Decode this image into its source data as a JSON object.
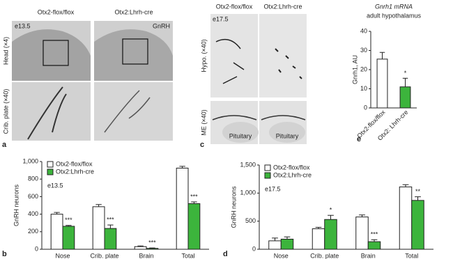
{
  "panels": {
    "a": {
      "label": "a",
      "columns": [
        "Otx2-flox/flox",
        "Otx2:Lhrh-cre"
      ],
      "rows": [
        "Head (×4)",
        "Crib. plate (×40)"
      ],
      "stage": "e13.5",
      "marker": "GnRH"
    },
    "c": {
      "label": "c",
      "columns": [
        "Otx2-flox/flox",
        "Otx2:Lhrh-cre"
      ],
      "rows": [
        "Hypo. (×40)",
        "ME (×40)"
      ],
      "stage": "e17.5",
      "structure": [
        "Pituitary",
        "Pituitary"
      ]
    }
  },
  "chart_data": [
    {
      "type": "bar",
      "panel_label": "b",
      "ylabel": "GnRH neurons",
      "annotation": "e13.5",
      "categories": [
        "Nose",
        "Crib. plate",
        "Brain",
        "Total"
      ],
      "series": [
        {
          "name": "Otx2-flox/flox",
          "color": "#ffffff",
          "values": [
            400,
            485,
            30,
            925
          ],
          "errors": [
            20,
            25,
            8,
            20
          ]
        },
        {
          "name": "Otx2:Lhrh-cre",
          "color": "#3cb43c",
          "values": [
            262,
            237,
            10,
            520
          ],
          "errors": [
            10,
            40,
            5,
            20
          ],
          "significance": [
            "***",
            "***",
            "***",
            "***"
          ]
        }
      ],
      "ylim": [
        0,
        1000
      ],
      "yticks": [
        0,
        200,
        400,
        600,
        800,
        {
          "value": 1000,
          "label": "1,000"
        }
      ],
      "legend": "top-left"
    },
    {
      "type": "bar",
      "panel_label": "d",
      "ylabel": "GnRH neurons",
      "annotation": "e17.5",
      "categories": [
        "Nose",
        "Crib. plate",
        "Brain",
        "Total"
      ],
      "series": [
        {
          "name": "Otx2-flox/flox",
          "color": "#ffffff",
          "values": [
            150,
            365,
            575,
            1110
          ],
          "errors": [
            50,
            25,
            35,
            40
          ]
        },
        {
          "name": "Otx2:Lhrh-cre",
          "color": "#3cb43c",
          "values": [
            180,
            530,
            135,
            870
          ],
          "errors": [
            40,
            75,
            35,
            65
          ],
          "significance": [
            null,
            "*",
            "***",
            "**"
          ]
        }
      ],
      "ylim": [
        0,
        1500
      ],
      "yticks": [
        0,
        500,
        {
          "value": 1000,
          "label": "1,000"
        },
        {
          "value": 1500,
          "label": "1,500"
        }
      ],
      "legend": "top-left"
    },
    {
      "type": "bar",
      "panel_label": "e",
      "title": "Gnrh1 mRNA",
      "subtitle": "adult hypothalamus",
      "ylabel": "Gnrh1, AU",
      "categories": [
        "Otx2-flox/flox",
        "Otx2: Lhrh-cre"
      ],
      "values": [
        25.5,
        11
      ],
      "errors": [
        3.5,
        4.5
      ],
      "colors": [
        "#ffffff",
        "#3cb43c"
      ],
      "significance": [
        null,
        "*"
      ],
      "ylim": [
        0,
        40
      ],
      "yticks": [
        0,
        10,
        20,
        30,
        40
      ]
    }
  ]
}
